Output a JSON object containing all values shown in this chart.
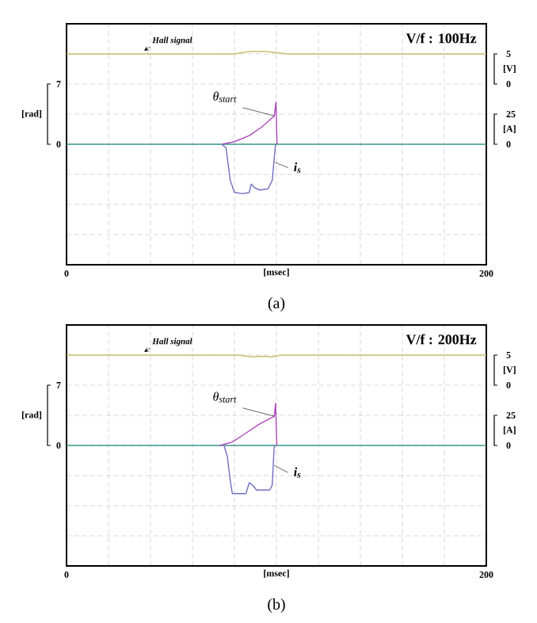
{
  "chart_data": [
    {
      "type": "line",
      "title": "V/f : 100Hz",
      "xlabel": "[msec]",
      "ylabel": "[rad]",
      "y2label": "[A]",
      "y3label": "[V]",
      "annotations": [
        "(a)"
      ],
      "xlim": [
        0,
        200
      ],
      "xticks": [
        0,
        {
          "value": 20,
          "label": null
        },
        {
          "value": 40,
          "label": null
        },
        {
          "value": 60,
          "label": null
        },
        {
          "value": 80,
          "label": null
        },
        {
          "value": 100,
          "label": null
        },
        {
          "value": 120,
          "label": null
        },
        {
          "value": 140,
          "label": null
        },
        {
          "value": 160,
          "label": null
        },
        {
          "value": 180,
          "label": null
        },
        200
      ],
      "ylim": [
        -14,
        14
      ],
      "yticks": [
        {
          "value": -14,
          "label": null
        },
        {
          "value": -10.5,
          "label": null
        },
        {
          "value": -7,
          "label": null
        },
        {
          "value": -3.5,
          "label": null
        },
        0,
        {
          "value": 3.5,
          "label": null
        },
        7,
        {
          "value": 10.5,
          "label": null
        },
        {
          "value": 14,
          "label": null
        }
      ],
      "y2lim": [
        -100,
        100
      ],
      "y2ticks": [
        0,
        25
      ],
      "y3lim": [
        -30,
        10
      ],
      "y3ticks": [
        0,
        5
      ],
      "grid": true,
      "ref_lines": [
        {
          "axis": "y",
          "value": 0,
          "color": "#3a9a8a"
        }
      ],
      "series": [
        {
          "name": "Hall signal",
          "axis": "y3",
          "color": "#c8c070",
          "x": [
            0,
            80,
            87,
            95,
            100,
            105,
            200
          ],
          "values": [
            5,
            5,
            5.4,
            5.4,
            5.2,
            5,
            5
          ]
        },
        {
          "name": "θ$_{start}$",
          "axis": "y",
          "color": "#b048c0",
          "x": [
            74,
            80,
            87,
            93,
            99,
            99.8,
            100.3
          ],
          "values": [
            0,
            0.3,
            1.0,
            2.0,
            3.3,
            4.9,
            0
          ]
        },
        {
          "name": "i$_{s}$",
          "axis": "y2",
          "color": "#7070c0",
          "x": [
            74,
            76,
            78,
            80,
            84,
            87,
            88,
            89.5,
            92,
            96,
            98,
            99.3,
            99.6
          ],
          "values": [
            0,
            -3,
            -30,
            -40,
            -41,
            -40,
            -33,
            -36,
            -38,
            -37,
            -30,
            -5,
            0
          ]
        }
      ]
    },
    {
      "type": "line",
      "title": "V/f : 200Hz",
      "xlabel": "[msec]",
      "ylabel": "[rad]",
      "y2label": "[A]",
      "y3label": "[V]",
      "annotations": [
        "(b)"
      ],
      "xlim": [
        0,
        200
      ],
      "xticks": [
        0,
        {
          "value": 20,
          "label": null
        },
        {
          "value": 40,
          "label": null
        },
        {
          "value": 60,
          "label": null
        },
        {
          "value": 80,
          "label": null
        },
        {
          "value": 100,
          "label": null
        },
        {
          "value": 120,
          "label": null
        },
        {
          "value": 140,
          "label": null
        },
        {
          "value": 160,
          "label": null
        },
        {
          "value": 180,
          "label": null
        },
        200
      ],
      "ylim": [
        -14,
        14
      ],
      "yticks": [
        {
          "value": -14,
          "label": null
        },
        {
          "value": -10.5,
          "label": null
        },
        {
          "value": -7,
          "label": null
        },
        {
          "value": -3.5,
          "label": null
        },
        0,
        {
          "value": 3.5,
          "label": null
        },
        7,
        {
          "value": 10.5,
          "label": null
        },
        {
          "value": 14,
          "label": null
        }
      ],
      "y2lim": [
        -100,
        100
      ],
      "y2ticks": [
        0,
        25
      ],
      "y3lim": [
        -30,
        10
      ],
      "y3ticks": [
        0,
        5
      ],
      "grid": true,
      "ref_lines": [
        {
          "axis": "y",
          "value": 0,
          "color": "#3a9a8a"
        }
      ],
      "series": [
        {
          "name": "Hall signal",
          "axis": "y3",
          "color": "#c8c070",
          "x": [
            0,
            82,
            88,
            93,
            98,
            102,
            200
          ],
          "values": [
            5,
            5,
            4.7,
            4.8,
            4.7,
            5,
            5
          ]
        },
        {
          "name": "θ$_{start}$",
          "axis": "y",
          "color": "#b048c0",
          "x": [
            73,
            79,
            84,
            92,
            99,
            99.6,
            100.2
          ],
          "values": [
            0,
            0.4,
            1.2,
            2.5,
            3.4,
            4.9,
            0
          ]
        },
        {
          "name": "i$_{s}$",
          "axis": "y2",
          "color": "#7070c0",
          "x": [
            75,
            76.6,
            78,
            79,
            85.5,
            87,
            88.7,
            90.5,
            96.8,
            98,
            98.9,
            99.4
          ],
          "values": [
            0,
            -9,
            -29,
            -40,
            -40,
            -31,
            -33,
            -37,
            -37,
            -33,
            -2,
            0
          ]
        }
      ]
    }
  ]
}
